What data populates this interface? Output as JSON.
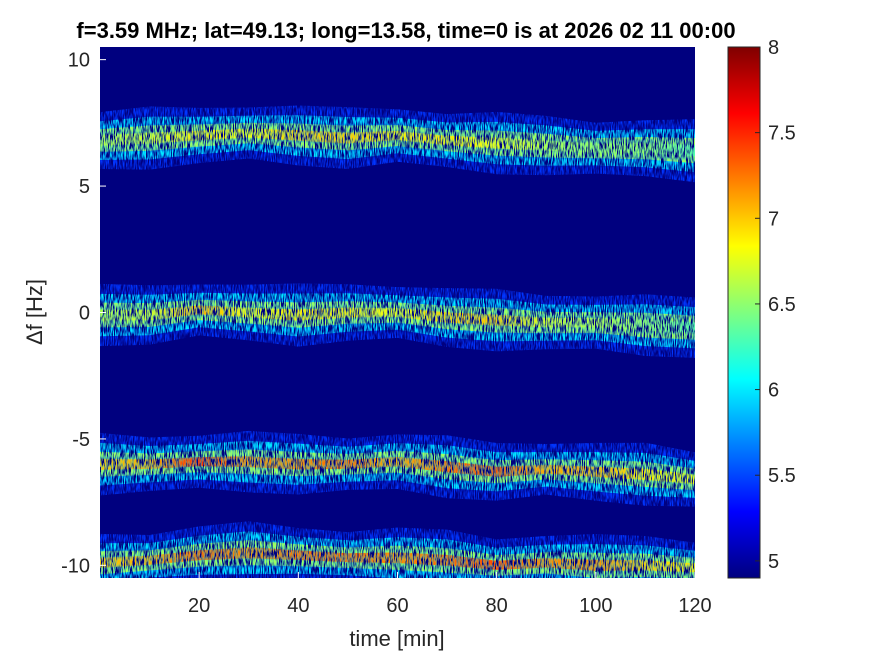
{
  "chart_data": {
    "type": "heatmap",
    "title": "f=3.59 MHz;  lat=49.13; long=13.58, time=0 is at 2026 02 11 00:00",
    "xlabel": "time [min]",
    "ylabel": "Δf [Hz]",
    "xlim": [
      0,
      120
    ],
    "ylim": [
      -10.5,
      10.5
    ],
    "x_ticks": [
      "20",
      "40",
      "60",
      "80",
      "100",
      "120"
    ],
    "y_ticks": [
      "-10",
      "-5",
      "0",
      "5",
      "10"
    ],
    "grid": false,
    "colorbar": {
      "range": [
        4.9,
        8
      ],
      "ticks": [
        "5",
        "5.5",
        "6",
        "6.5",
        "7",
        "7.5",
        "8"
      ],
      "colormap": "jet",
      "colors": [
        "#00007f",
        "#0000ff",
        "#007fff",
        "#00ffff",
        "#7fff7f",
        "#ffff00",
        "#ff7f00",
        "#ff0000",
        "#7f0000"
      ]
    },
    "background_color": "#00007f",
    "series": [
      {
        "x": [
          0,
          10,
          20,
          30,
          40,
          50,
          60,
          70,
          80,
          90,
          100,
          110,
          120
        ],
        "center": [
          6.8,
          6.9,
          7.0,
          7.1,
          7.0,
          6.9,
          7.0,
          6.8,
          6.7,
          6.6,
          6.5,
          6.5,
          6.4
        ],
        "peak": [
          6.6,
          6.7,
          6.9,
          6.8,
          7.0,
          7.0,
          6.9,
          6.9,
          6.8,
          6.6,
          6.5,
          6.5,
          6.3
        ]
      },
      {
        "x": [
          0,
          10,
          20,
          30,
          40,
          50,
          60,
          70,
          80,
          90,
          100,
          110,
          120
        ],
        "center": [
          -0.1,
          -0.1,
          0.1,
          0.0,
          -0.1,
          0.0,
          0.0,
          -0.2,
          -0.3,
          -0.4,
          -0.4,
          -0.5,
          -0.6
        ],
        "peak": [
          6.6,
          6.7,
          7.1,
          6.8,
          6.9,
          6.9,
          6.8,
          7.0,
          7.0,
          6.7,
          6.6,
          6.5,
          6.3
        ]
      },
      {
        "x": [
          0,
          10,
          20,
          30,
          40,
          50,
          60,
          70,
          80,
          90,
          100,
          110,
          120
        ],
        "center": [
          -6.0,
          -6.0,
          -5.9,
          -5.9,
          -6.0,
          -6.0,
          -5.9,
          -6.1,
          -6.3,
          -6.2,
          -6.3,
          -6.4,
          -6.6
        ],
        "peak": [
          7.0,
          7.1,
          7.5,
          7.2,
          7.2,
          7.3,
          7.1,
          7.3,
          7.4,
          7.1,
          7.1,
          6.9,
          6.8
        ]
      },
      {
        "x": [
          0,
          10,
          20,
          30,
          40,
          50,
          60,
          70,
          80,
          90,
          100,
          110,
          120
        ],
        "center": [
          -9.9,
          -9.8,
          -9.6,
          -9.5,
          -9.6,
          -9.7,
          -9.7,
          -9.8,
          -10.0,
          -9.9,
          -10.0,
          -10.0,
          -10.1
        ],
        "peak": [
          7.0,
          7.1,
          7.3,
          7.2,
          7.3,
          7.3,
          7.2,
          7.3,
          7.4,
          7.2,
          7.2,
          7.0,
          6.9
        ]
      }
    ]
  }
}
